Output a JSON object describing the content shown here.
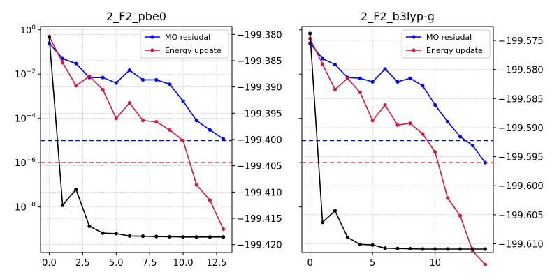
{
  "colors": {
    "mo_residual": "#0000ff",
    "energy_update": "#dc143c",
    "energy": "#000000",
    "grid": "#b0b0b0",
    "axes": "#000000"
  },
  "chart_data": [
    {
      "type": "line",
      "title": "2_F2_pbe0",
      "xlabel": "",
      "ylabel": "",
      "x_ticks": [
        "0.0",
        "2.5",
        "5.0",
        "7.5",
        "10.0",
        "12.5"
      ],
      "xlim": [
        -0.65,
        13.65
      ],
      "left_axis": {
        "scale": "log",
        "ylim_exponent": [
          -10.06,
          0.15
        ],
        "ticks": [
          0,
          -2,
          -4,
          -6,
          -8
        ]
      },
      "right_axis": {
        "scale": "linear",
        "ylim": [
          -199.4215,
          -199.3785
        ],
        "ticks": [
          "-199.380",
          "-199.385",
          "-199.390",
          "-199.395",
          "-199.400",
          "-199.405",
          "-199.410",
          "-199.415",
          "-199.420"
        ]
      },
      "legend": {
        "position": "top-right",
        "entries": [
          "MO resiudal",
          "Energy update"
        ]
      },
      "grid": true,
      "thresholds": [
        {
          "axis": "left",
          "value": 1e-05,
          "color": "#0000ff",
          "style": "dashed"
        },
        {
          "axis": "left",
          "value": 1e-06,
          "color": "#dc143c",
          "style": "dashed"
        }
      ],
      "series": [
        {
          "name": "MO resiudal",
          "axis": "left",
          "color": "#0000ff",
          "x": [
            0,
            1,
            2,
            3,
            4,
            5,
            6,
            7,
            8,
            9,
            10,
            11,
            12,
            13
          ],
          "values": [
            0.25,
            0.05,
            0.03,
            0.007,
            0.007,
            0.004,
            0.015,
            0.0055,
            0.0055,
            0.0035,
            0.0006,
            8e-05,
            3e-05,
            1.2e-05
          ]
        },
        {
          "name": "Energy update",
          "axis": "left",
          "color": "#dc143c",
          "x": [
            0,
            1,
            2,
            3,
            4,
            5,
            6,
            7,
            8,
            9,
            10,
            11,
            12,
            13
          ],
          "values": [
            0.5,
            0.033,
            0.003,
            0.008,
            0.002,
            0.0001,
            0.0005,
            8e-05,
            7e-05,
            3e-05,
            1e-05,
            1e-07,
            2e-08,
            1e-09
          ]
        },
        {
          "name": "",
          "axis": "right",
          "color": "#000000",
          "x": [
            0,
            1,
            2,
            3,
            4,
            5,
            6,
            7,
            8,
            9,
            10,
            11,
            12,
            13
          ],
          "values": [
            -199.3805,
            -199.4125,
            -199.4095,
            -199.4165,
            -199.4178,
            -199.4179,
            -199.41835,
            -199.4184,
            -199.41845,
            -199.4185,
            -199.41855,
            -199.41855,
            -199.41855,
            -199.41855
          ]
        }
      ]
    },
    {
      "type": "line",
      "title": "2_F2_b3lyp-g",
      "xlabel": "",
      "ylabel": "",
      "x_ticks": [
        "0",
        "5",
        "10"
      ],
      "xlim": [
        -0.65,
        14.65
      ],
      "left_axis": {
        "scale": "log",
        "ylim_exponent": [
          -10.06,
          0.15
        ],
        "ticks": []
      },
      "right_axis": {
        "scale": "linear",
        "ylim": [
          -199.6115,
          -199.5726
        ],
        "ticks": [
          "-199.575",
          "-199.580",
          "-199.585",
          "-199.590",
          "-199.595",
          "-199.600",
          "-199.605",
          "-199.610"
        ]
      },
      "legend": {
        "position": "top-right",
        "entries": [
          "MO resiudal",
          "Energy update"
        ]
      },
      "grid": true,
      "thresholds": [
        {
          "axis": "left",
          "value": 1e-05,
          "color": "#0000ff",
          "style": "dashed"
        },
        {
          "axis": "left",
          "value": 1e-06,
          "color": "#dc143c",
          "style": "dashed"
        }
      ],
      "series": [
        {
          "name": "MO resiudal",
          "axis": "left",
          "color": "#0000ff",
          "x": [
            0,
            1,
            2,
            3,
            4,
            5,
            6,
            7,
            8,
            9,
            10,
            11,
            12,
            13,
            14
          ],
          "values": [
            0.25,
            0.05,
            0.027,
            0.007,
            0.0065,
            0.0045,
            0.017,
            0.0045,
            0.0065,
            0.003,
            0.0004,
            7e-05,
            1.5e-05,
            6e-06,
            1e-06
          ]
        },
        {
          "name": "Energy update",
          "axis": "left",
          "color": "#dc143c",
          "x": [
            0,
            1,
            2,
            3,
            4,
            5,
            6,
            7,
            8,
            9,
            10,
            11,
            12,
            13,
            14
          ],
          "values": [
            0.4,
            0.028,
            0.002,
            0.0065,
            0.0015,
            8e-05,
            0.0004,
            5e-05,
            6e-05,
            2e-05,
            3e-06,
            2.5e-08,
            4e-09,
            1e-10,
            2.5e-11
          ]
        },
        {
          "name": "",
          "axis": "right",
          "color": "#000000",
          "x": [
            0,
            1,
            2,
            3,
            4,
            5,
            6,
            7,
            8,
            9,
            10,
            11,
            12,
            13,
            14
          ],
          "values": [
            -199.5738,
            -199.6063,
            -199.6043,
            -199.6089,
            -199.6101,
            -199.6102,
            -199.61075,
            -199.6108,
            -199.61085,
            -199.6109,
            -199.6109,
            -199.6109,
            -199.6109,
            -199.6109,
            -199.6109
          ]
        }
      ]
    }
  ]
}
